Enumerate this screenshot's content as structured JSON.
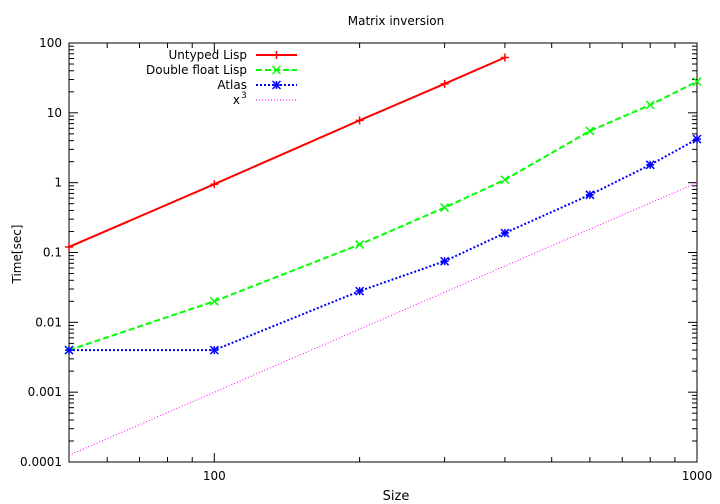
{
  "chart_data": {
    "type": "line",
    "title": "Matrix inversion",
    "xlabel": "Size",
    "ylabel": "Time[sec]",
    "x_scale": "log",
    "y_scale": "log",
    "xlim": [
      50,
      1000
    ],
    "ylim": [
      0.0001,
      100
    ],
    "grid": false,
    "legend_position": "top-left",
    "x_ticks": [
      {
        "value": 100,
        "label": "100"
      },
      {
        "value": 1000,
        "label": "1000"
      }
    ],
    "y_ticks": [
      {
        "value": 0.0001,
        "label": "0.0001"
      },
      {
        "value": 0.001,
        "label": "0.001"
      },
      {
        "value": 0.01,
        "label": "0.01"
      },
      {
        "value": 0.1,
        "label": "0.1"
      },
      {
        "value": 1,
        "label": "1"
      },
      {
        "value": 10,
        "label": "10"
      },
      {
        "value": 100,
        "label": "100"
      }
    ],
    "series": [
      {
        "name": "Untyped Lisp",
        "color": "#ff0000",
        "style": "solid",
        "marker": "plus",
        "x": [
          50,
          100,
          200,
          300,
          400
        ],
        "y": [
          0.12,
          0.95,
          7.8,
          26,
          62
        ]
      },
      {
        "name": "Double float Lisp",
        "color": "#00ff00",
        "style": "dashed",
        "marker": "cross",
        "x": [
          50,
          100,
          200,
          300,
          400,
          600,
          800,
          1000
        ],
        "y": [
          0.004,
          0.02,
          0.13,
          0.44,
          1.1,
          5.5,
          13,
          28
        ]
      },
      {
        "name": "Atlas",
        "color": "#0000ff",
        "style": "dotted",
        "marker": "star",
        "x": [
          50,
          100,
          200,
          300,
          400,
          600,
          800,
          1000
        ],
        "y": [
          0.004,
          0.004,
          0.028,
          0.075,
          0.19,
          0.67,
          1.8,
          4.2
        ]
      },
      {
        "name": "x",
        "name_superscript": "3",
        "color": "#ff00ff",
        "style": "dotted-fine",
        "marker": "none",
        "x": [
          50,
          1000
        ],
        "y": [
          0.000125,
          1
        ]
      }
    ]
  }
}
